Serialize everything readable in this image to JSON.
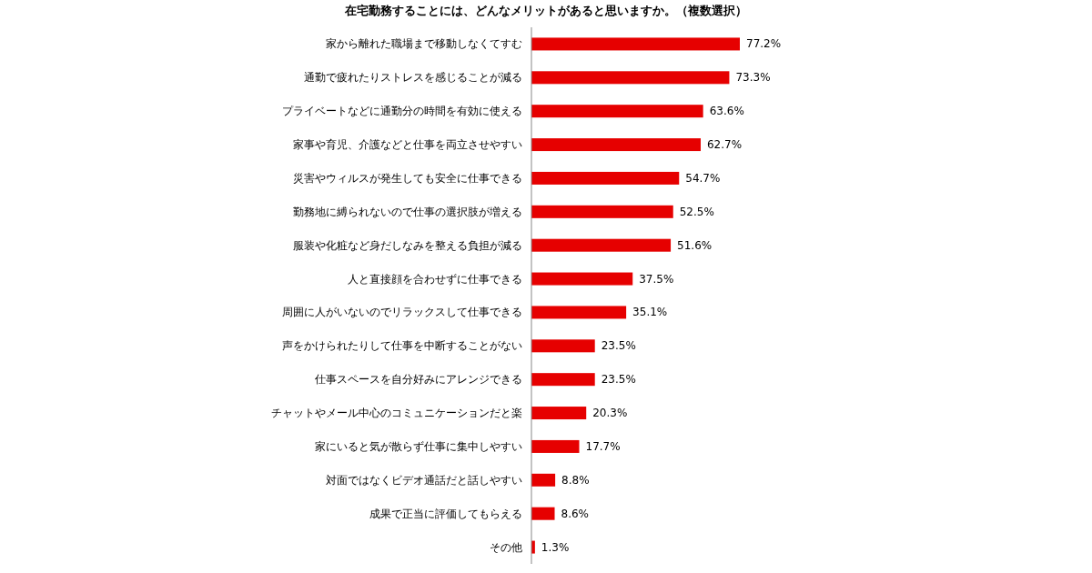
{
  "chart_data": {
    "type": "bar",
    "orientation": "horizontal",
    "relative": false,
    "title": "在宅勤務することには、どんなメリットがあると思いますか。（複数選択）",
    "categories": [
      "家から離れた職場まで移動しなくてすむ",
      "通勤で疲れたりストレスを感じることが減る",
      "プライベートなどに通勤分の時間を有効に使える",
      "家事や育児、介護などと仕事を両立させやすい",
      "災害やウィルスが発生しても安全に仕事できる",
      "勤務地に縛られないので仕事の選択肢が増える",
      "服装や化粧など身だしなみを整える負担が減る",
      "人と直接顔を合わせずに仕事できる",
      "周囲に人がいないのでリラックスして仕事できる",
      "声をかけられたりして仕事を中断することがない",
      "仕事スペースを自分好みにアレンジできる",
      "チャットやメール中心のコミュニケーションだと楽",
      "家にいると気が散らず仕事に集中しやすい",
      "対面ではなくビデオ通話だと話しやすい",
      "成果で正当に評価してもらえる",
      "その他"
    ],
    "values": [
      77.2,
      73.3,
      63.6,
      62.7,
      54.7,
      52.5,
      51.6,
      37.5,
      35.1,
      23.5,
      23.5,
      20.3,
      17.7,
      8.8,
      8.6,
      1.3
    ],
    "value_labels": [
      "77.2%",
      "73.3%",
      "63.6%",
      "62.7%",
      "54.7%",
      "52.5%",
      "51.6%",
      "37.5%",
      "35.1%",
      "23.5%",
      "23.5%",
      "20.3%",
      "17.7%",
      "8.8%",
      "8.6%",
      "1.3%"
    ],
    "color": "#e60000"
  }
}
